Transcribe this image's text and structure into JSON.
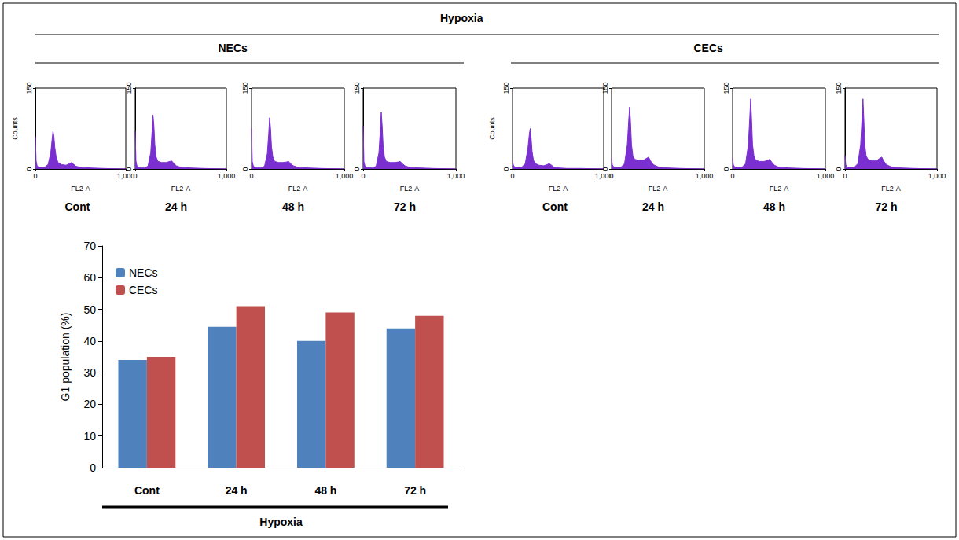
{
  "header": {
    "title": "Hypoxia",
    "groups": [
      "NECs",
      "CECs"
    ]
  },
  "chart_data": [
    {
      "type": "area",
      "title": "Cont",
      "x": [
        0,
        8,
        20,
        50,
        100,
        140,
        170,
        185,
        195,
        205,
        215,
        230,
        250,
        290,
        340,
        380,
        400,
        420,
        450,
        500,
        600,
        750,
        1000
      ],
      "values": [
        60,
        15,
        5,
        3,
        3,
        8,
        30,
        55,
        70,
        60,
        40,
        22,
        12,
        8,
        7,
        10,
        12,
        9,
        5,
        3,
        2,
        1,
        0
      ],
      "xlim": [
        0,
        1000
      ],
      "xticks": [
        0,
        1000
      ],
      "ylim": [
        0,
        150
      ],
      "yticks": [
        0,
        150
      ],
      "x_label": "FL2-A",
      "y_label": "Counts",
      "color": "#7a2fd0"
    },
    {
      "type": "area",
      "title": "24 h",
      "x": [
        0,
        8,
        20,
        50,
        100,
        140,
        170,
        185,
        195,
        205,
        215,
        230,
        250,
        290,
        340,
        380,
        400,
        420,
        450,
        500,
        600,
        750,
        1000
      ],
      "values": [
        70,
        15,
        5,
        2,
        2,
        5,
        30,
        70,
        100,
        80,
        45,
        22,
        14,
        12,
        12,
        14,
        15,
        11,
        6,
        3,
        2,
        1,
        0
      ],
      "xlim": [
        0,
        1000
      ],
      "xticks": [
        0,
        1000
      ],
      "ylim": [
        0,
        150
      ],
      "yticks": [
        0,
        150
      ],
      "x_label": "FL2-A",
      "color": "#7a2fd0"
    },
    {
      "type": "area",
      "title": "48 h",
      "x": [
        0,
        8,
        20,
        50,
        100,
        140,
        170,
        185,
        195,
        205,
        215,
        230,
        250,
        290,
        340,
        380,
        400,
        420,
        450,
        500,
        600,
        750,
        1000
      ],
      "values": [
        75,
        14,
        5,
        2,
        2,
        5,
        28,
        65,
        95,
        75,
        42,
        22,
        14,
        12,
        12,
        13,
        14,
        10,
        6,
        3,
        2,
        1,
        0
      ],
      "xlim": [
        0,
        1000
      ],
      "xticks": [
        0,
        1000
      ],
      "ylim": [
        0,
        150
      ],
      "yticks": [
        0,
        150
      ],
      "x_label": "FL2-A",
      "color": "#7a2fd0"
    },
    {
      "type": "area",
      "title": "72 h",
      "x": [
        0,
        8,
        20,
        50,
        100,
        140,
        170,
        185,
        195,
        205,
        215,
        230,
        250,
        290,
        340,
        380,
        400,
        420,
        450,
        500,
        600,
        750,
        1000
      ],
      "values": [
        80,
        14,
        5,
        2,
        2,
        5,
        30,
        72,
        105,
        80,
        44,
        22,
        14,
        12,
        12,
        13,
        14,
        10,
        6,
        3,
        2,
        1,
        0
      ],
      "xlim": [
        0,
        1000
      ],
      "xticks": [
        0,
        1000
      ],
      "ylim": [
        0,
        150
      ],
      "yticks": [
        0,
        150
      ],
      "x_label": "FL2-A",
      "color": "#7a2fd0"
    },
    {
      "type": "area",
      "title": "Cont",
      "x": [
        0,
        8,
        20,
        50,
        100,
        140,
        170,
        185,
        195,
        205,
        215,
        230,
        250,
        290,
        340,
        380,
        400,
        420,
        450,
        500,
        600,
        750,
        1000
      ],
      "values": [
        15,
        8,
        4,
        3,
        3,
        10,
        40,
        65,
        75,
        55,
        32,
        16,
        10,
        7,
        6,
        8,
        10,
        8,
        4,
        2,
        1,
        1,
        0
      ],
      "xlim": [
        0,
        1000
      ],
      "xticks": [
        0,
        1000
      ],
      "ylim": [
        0,
        150
      ],
      "yticks": [
        0,
        150
      ],
      "x_label": "FL2-A",
      "y_label": "Counts",
      "color": "#7a2fd0"
    },
    {
      "type": "area",
      "title": "24 h",
      "x": [
        0,
        8,
        20,
        50,
        100,
        140,
        170,
        185,
        195,
        205,
        215,
        230,
        250,
        290,
        340,
        380,
        400,
        420,
        450,
        500,
        600,
        750,
        1000
      ],
      "values": [
        20,
        8,
        4,
        3,
        3,
        10,
        45,
        90,
        115,
        85,
        45,
        24,
        18,
        16,
        16,
        20,
        22,
        15,
        8,
        4,
        2,
        1,
        0
      ],
      "xlim": [
        0,
        1000
      ],
      "xticks": [
        0,
        1000
      ],
      "ylim": [
        0,
        150
      ],
      "yticks": [
        0,
        150
      ],
      "x_label": "FL2-A",
      "color": "#7a2fd0"
    },
    {
      "type": "area",
      "title": "48 h",
      "x": [
        0,
        8,
        20,
        50,
        100,
        140,
        170,
        185,
        195,
        205,
        215,
        230,
        250,
        290,
        340,
        380,
        400,
        420,
        450,
        500,
        600,
        750,
        1000
      ],
      "values": [
        20,
        8,
        4,
        3,
        3,
        10,
        45,
        95,
        130,
        90,
        45,
        24,
        16,
        14,
        14,
        16,
        18,
        13,
        7,
        3,
        2,
        1,
        0
      ],
      "xlim": [
        0,
        1000
      ],
      "xticks": [
        0,
        1000
      ],
      "ylim": [
        0,
        150
      ],
      "yticks": [
        0,
        150
      ],
      "x_label": "FL2-A",
      "color": "#7a2fd0"
    },
    {
      "type": "area",
      "title": "72 h",
      "x": [
        0,
        8,
        20,
        50,
        100,
        140,
        170,
        185,
        195,
        205,
        215,
        230,
        250,
        290,
        340,
        380,
        400,
        420,
        450,
        500,
        600,
        750,
        1000
      ],
      "values": [
        25,
        8,
        4,
        3,
        3,
        10,
        45,
        95,
        130,
        90,
        45,
        24,
        18,
        15,
        15,
        20,
        22,
        15,
        8,
        4,
        2,
        1,
        0
      ],
      "xlim": [
        0,
        1000
      ],
      "xticks": [
        0,
        1000
      ],
      "ylim": [
        0,
        150
      ],
      "yticks": [
        0,
        150
      ],
      "x_label": "FL2-A",
      "color": "#7a2fd0"
    },
    {
      "type": "bar",
      "categories": [
        "Cont",
        "24 h",
        "48 h",
        "72 h"
      ],
      "series": [
        {
          "name": "NECs",
          "color": "#4f81bd",
          "values": [
            34,
            44.5,
            40,
            44
          ]
        },
        {
          "name": "CECs",
          "color": "#c0504d",
          "values": [
            35,
            51,
            49,
            48
          ]
        }
      ],
      "ylim": [
        0,
        70
      ],
      "yticks": [
        0,
        10,
        20,
        30,
        40,
        50,
        60,
        70
      ],
      "x_label": "Hypoxia",
      "y_label": "G1 population (%)",
      "grid": false,
      "legend": "upper left"
    }
  ]
}
